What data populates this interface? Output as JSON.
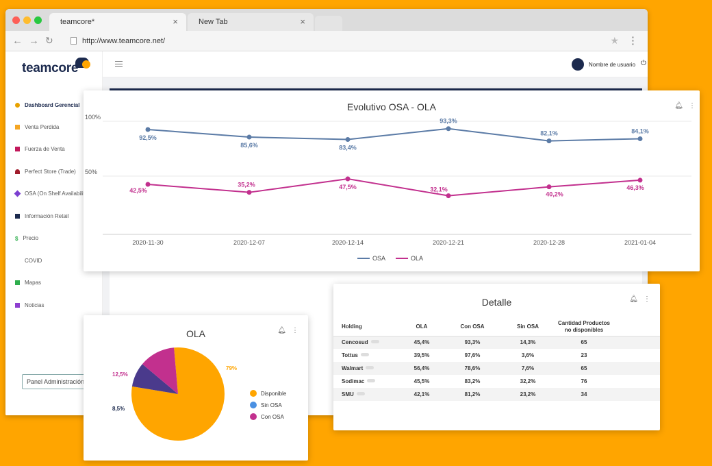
{
  "browser": {
    "tabs": [
      {
        "label": "teamcore*"
      },
      {
        "label": "New Tab"
      }
    ],
    "url": "http://www.teamcore.net/"
  },
  "app": {
    "logo": "teamcore",
    "username": "Nombre de usuario",
    "sidebar": [
      {
        "label": "Dashboard Gerencial",
        "color": "#e8a200"
      },
      {
        "label": "Venta Perdida",
        "color": "#f5a623"
      },
      {
        "label": "Fuerza de Venta",
        "color": "#c2185b"
      },
      {
        "label": "Perfect Store (Trade)",
        "color": "#a01c2c"
      },
      {
        "label": "OSA (On Shelf Availability)",
        "color": "#7b3fd0"
      },
      {
        "label": "Información Retail",
        "color": "#1c2a4e"
      },
      {
        "label": "Precio",
        "color": "#2eae4d"
      },
      {
        "label": "COVID",
        "color": ""
      },
      {
        "label": "Mapas",
        "color": "#2eae4d"
      },
      {
        "label": "Noticias",
        "color": "#8e3fd0"
      }
    ],
    "panel_button": "Panel Administración"
  },
  "colors": {
    "osa": "#5b7ba6",
    "ola": "#c2308e",
    "orange": "#FFA500",
    "navy": "#1c2a4e"
  },
  "line_chart": {
    "title": "Evolutivo OSA - OLA",
    "y_tick_labels": [
      "100%",
      "50%"
    ],
    "legend": [
      "OSA",
      "OLA"
    ]
  },
  "pie_chart": {
    "title": "OLA",
    "legend": [
      "Disponible",
      "Sin OSA",
      "Con OSA"
    ]
  },
  "detail_table": {
    "title": "Detalle",
    "columns": [
      "Holding",
      "OLA",
      "Con OSA",
      "Sin OSA",
      "Cantidad Productos no disponibles"
    ],
    "rows": [
      [
        "Cencosud",
        "45,4%",
        "93,3%",
        "14,3%",
        "65"
      ],
      [
        "Tottus",
        "39,5%",
        "97,6%",
        "3,6%",
        "23"
      ],
      [
        "Walmart",
        "56,4%",
        "78,6%",
        "7,6%",
        "65"
      ],
      [
        "Sodimac",
        "45,5%",
        "83,2%",
        "32,2%",
        "76"
      ],
      [
        "SMU",
        "42,1%",
        "81,2%",
        "23,2%",
        "34"
      ]
    ]
  },
  "chart_data": [
    {
      "type": "line",
      "title": "Evolutivo OSA - OLA",
      "x": [
        "2020-11-30",
        "2020-12-07",
        "2020-12-14",
        "2020-12-21",
        "2020-12-28",
        "2021-01-04"
      ],
      "ylim": [
        0,
        100
      ],
      "series": [
        {
          "name": "OSA",
          "values": [
            92.5,
            85.6,
            83.4,
            93.3,
            82.1,
            84.1
          ],
          "labels": [
            "92,5%",
            "85,6%",
            "83,4%",
            "93,3%",
            "82,1%",
            "84,1%"
          ]
        },
        {
          "name": "OLA",
          "values": [
            42.5,
            35.2,
            47.5,
            32.1,
            40.2,
            46.3
          ],
          "labels": [
            "42,5%",
            "35,2%",
            "47,5%",
            "32,1%",
            "40,2%",
            "46,3%"
          ]
        }
      ]
    },
    {
      "type": "pie",
      "title": "OLA",
      "labels": [
        "Disponible",
        "Sin OSA",
        "Con OSA"
      ],
      "values": [
        79,
        8.5,
        12.5
      ],
      "value_labels": [
        "79%",
        "8,5%",
        "12,5%"
      ],
      "colors": [
        "#FFA500",
        "#4a3a8c",
        "#c2308e"
      ],
      "legend_colors": [
        "#FFA500",
        "#4a90e2",
        "#c2308e"
      ]
    }
  ]
}
